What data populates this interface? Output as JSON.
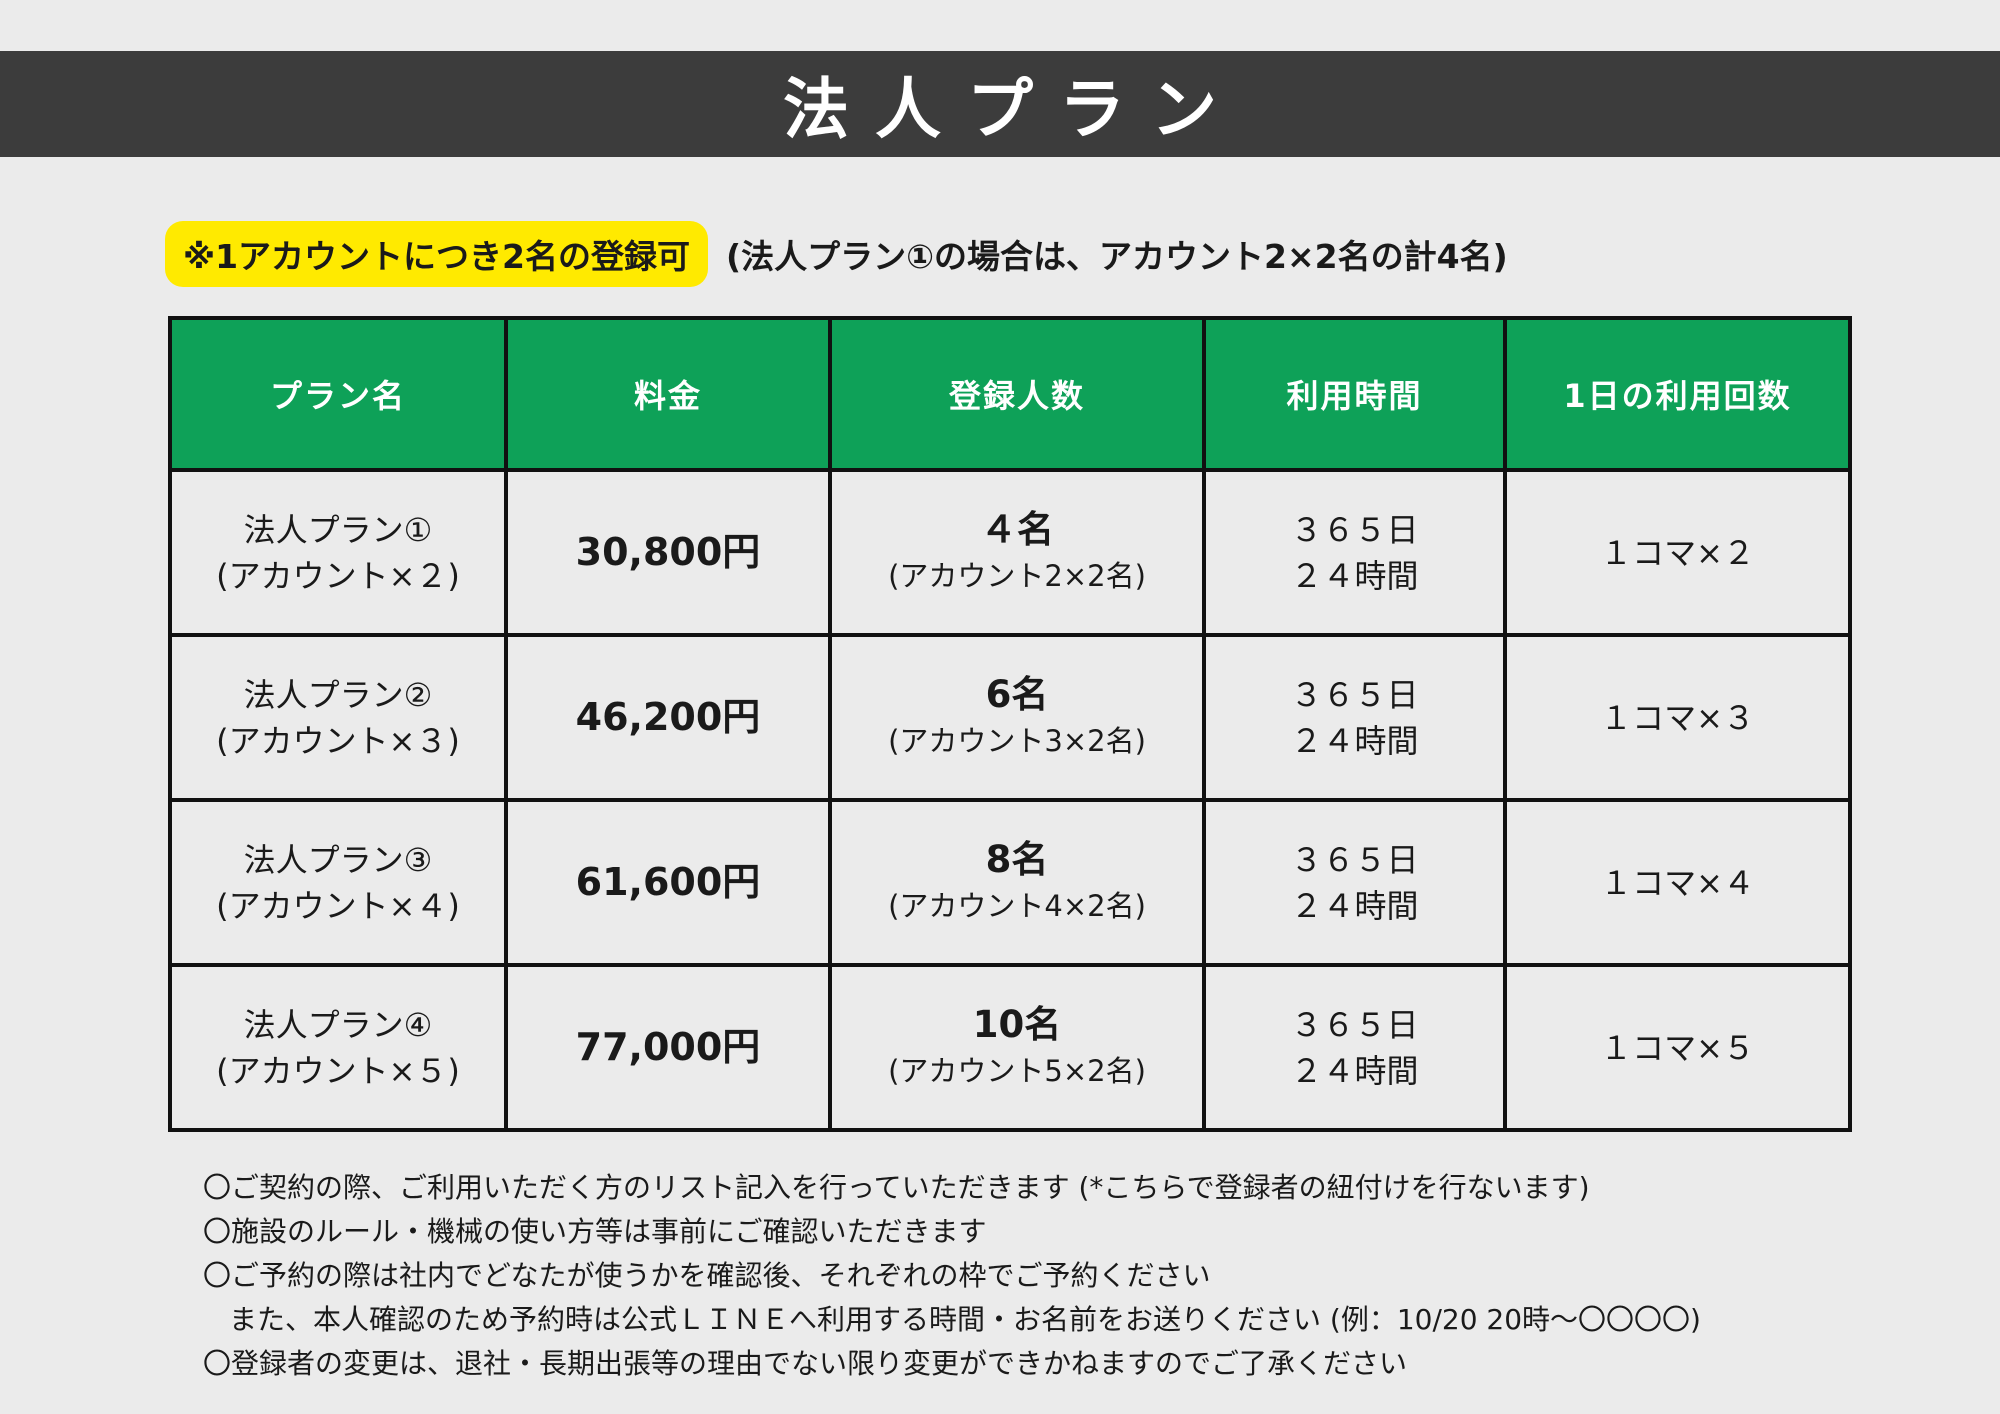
{
  "header": {
    "title": "法人プラン"
  },
  "note": {
    "badge": "※1アカウントにつき2名の登録可",
    "text": "(法人プラン①の場合は、アカウント2×2名の計4名)"
  },
  "table": {
    "headers": [
      "プラン名",
      "料金",
      "登録人数",
      "利用時間",
      "1日の利用回数"
    ],
    "rows": [
      {
        "plan_line1": "法人プラン①",
        "plan_line2": "(アカウント×２)",
        "price": "30,800円",
        "count": "４名",
        "count_detail": "(アカウント2×2名)",
        "hours_line1": "３６５日",
        "hours_line2": "２４時間",
        "uses": "１コマ×２"
      },
      {
        "plan_line1": "法人プラン②",
        "plan_line2": "(アカウント×３)",
        "price": "46,200円",
        "count": "6名",
        "count_detail": "(アカウント3×2名)",
        "hours_line1": "３６５日",
        "hours_line2": "２４時間",
        "uses": "１コマ×３"
      },
      {
        "plan_line1": "法人プラン③",
        "plan_line2": "(アカウント×４)",
        "price": "61,600円",
        "count": "8名",
        "count_detail": "(アカウント4×2名)",
        "hours_line1": "３６５日",
        "hours_line2": "２４時間",
        "uses": "１コマ×４"
      },
      {
        "plan_line1": "法人プラン④",
        "plan_line2": "(アカウント×５)",
        "price": "77,000円",
        "count": "10名",
        "count_detail": "(アカウント5×2名)",
        "hours_line1": "３６５日",
        "hours_line2": "２４時間",
        "uses": "１コマ×５"
      }
    ]
  },
  "notes": {
    "item1": "〇ご契約の際、ご利用いただく方のリスト記入を行っていただきます (*こちらで登録者の紐付けを行ないます)",
    "item2": "〇施設のルール・機械の使い方等は事前にご確認いただきます",
    "item3": "〇ご予約の際は社内でどなたが使うかを確認後、それぞれの枠でご予約ください",
    "item3_cont": "また、本人確認のため予約時は公式ＬＩＮＥへ利用する時間・お名前をお送りください (例：10/20 20時～〇〇〇〇)",
    "item4": "〇登録者の変更は、退社・長期出張等の理由でない限り変更ができかねますのでご了承ください"
  }
}
